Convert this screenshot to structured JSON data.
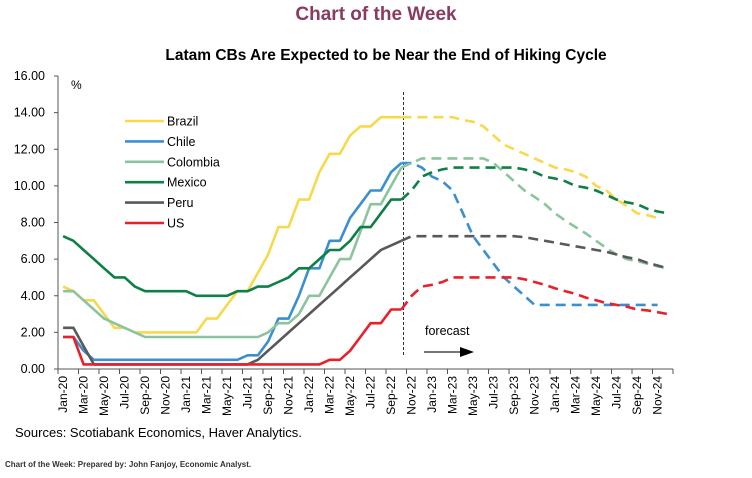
{
  "header": {
    "title": "Chart of the Week"
  },
  "footer": {
    "text": "Chart of the Week:  Prepared by: John Fanjoy, Economic Analyst."
  },
  "sources": "Sources: Scotiabank Economics, Haver Analytics.",
  "chart_data": {
    "type": "line",
    "title": "Latam CBs Are Expected to be Near the End of Hiking Cycle",
    "ylabel": "%",
    "xlabel": "",
    "ylim": [
      0,
      16
    ],
    "y_ticks": [
      "0.00",
      "2.00",
      "4.00",
      "6.00",
      "8.00",
      "10.00",
      "12.00",
      "14.00",
      "16.00"
    ],
    "x_frequency": "monthly",
    "x_tick_labels": [
      "Jan-20",
      "Mar-20",
      "May-20",
      "Jul-20",
      "Sep-20",
      "Nov-20",
      "Jan-21",
      "Mar-21",
      "May-21",
      "Jul-21",
      "Sep-21",
      "Nov-21",
      "Jan-22",
      "Mar-22",
      "May-22",
      "Jul-22",
      "Sep-22",
      "Nov-22",
      "Jan-23",
      "Mar-23",
      "May-23",
      "Jul-23",
      "Sep-23",
      "Nov-23",
      "Jan-24",
      "Mar-24",
      "May-24",
      "Jul-24",
      "Sep-24",
      "Nov-24"
    ],
    "forecast_start": "Nov-22",
    "annotation": "forecast",
    "grid": false,
    "legend_position": "top-left",
    "series": [
      {
        "name": "Brazil",
        "color": "#F7D94C",
        "values": [
          4.5,
          4.25,
          3.75,
          3.75,
          3.0,
          2.25,
          2.25,
          2.0,
          2,
          2,
          2,
          2,
          2,
          2,
          2.75,
          2.75,
          3.5,
          4.25,
          4.25,
          5.25,
          6.25,
          7.75,
          7.75,
          9.25,
          9.25,
          10.75,
          11.75,
          11.75,
          12.75,
          13.25,
          13.25,
          13.75,
          13.75,
          13.75,
          13.75,
          13.75,
          13.75,
          13.75,
          13.75,
          13.6,
          13.5,
          13.25,
          12.75,
          12.25,
          12.0,
          11.75,
          11.5,
          11.25,
          11.0,
          10.9,
          10.75,
          10.5,
          10.0,
          9.75,
          9.25,
          8.9,
          8.5,
          8.4,
          8.25,
          null
        ]
      },
      {
        "name": "Chile",
        "color": "#3B8FD0",
        "values": [
          1.75,
          1.75,
          1.0,
          0.5,
          0.5,
          0.5,
          0.5,
          0.5,
          0.5,
          0.5,
          0.5,
          0.5,
          0.5,
          0.5,
          0.5,
          0.5,
          0.5,
          0.5,
          0.75,
          0.75,
          1.5,
          2.75,
          2.75,
          4.0,
          5.5,
          5.5,
          7.0,
          7.0,
          8.25,
          9.0,
          9.75,
          9.75,
          10.75,
          11.25,
          11.25,
          11.0,
          10.5,
          10.25,
          9.75,
          8.5,
          7.25,
          6.5,
          5.75,
          5.0,
          4.5,
          4.0,
          3.5,
          3.5,
          3.5,
          3.5,
          3.5,
          3.5,
          3.5,
          3.5,
          3.5,
          3.5,
          3.5,
          3.5,
          3.5,
          null
        ]
      },
      {
        "name": "Colombia",
        "color": "#8CC49F",
        "values": [
          4.25,
          4.25,
          3.75,
          3.25,
          2.75,
          2.5,
          2.25,
          2.0,
          1.75,
          1.75,
          1.75,
          1.75,
          1.75,
          1.75,
          1.75,
          1.75,
          1.75,
          1.75,
          1.75,
          1.75,
          2.0,
          2.5,
          2.5,
          3.0,
          4.0,
          4.0,
          5.0,
          6.0,
          6.0,
          7.5,
          9.0,
          9.0,
          10.0,
          11.0,
          11.25,
          11.5,
          11.5,
          11.5,
          11.5,
          11.5,
          11.5,
          11.5,
          11.25,
          10.75,
          10.25,
          9.75,
          9.4,
          9.0,
          8.5,
          8.1,
          7.75,
          7.4,
          7.0,
          6.6,
          6.25,
          6.0,
          5.9,
          5.75,
          5.6,
          5.5
        ]
      },
      {
        "name": "Mexico",
        "color": "#0E7F47",
        "values": [
          7.25,
          7.0,
          6.5,
          6.0,
          5.5,
          5.0,
          5.0,
          4.5,
          4.25,
          4.25,
          4.25,
          4.25,
          4.25,
          4.0,
          4.0,
          4.0,
          4.0,
          4.25,
          4.25,
          4.5,
          4.5,
          4.75,
          5.0,
          5.5,
          5.5,
          6.0,
          6.5,
          6.5,
          7.0,
          7.75,
          7.75,
          8.5,
          9.25,
          9.25,
          9.75,
          10.5,
          10.75,
          10.9,
          11.0,
          11.0,
          11.0,
          11.0,
          11.0,
          11.0,
          11.0,
          10.9,
          10.75,
          10.5,
          10.4,
          10.25,
          10.0,
          9.9,
          9.75,
          9.5,
          9.25,
          9.1,
          9.0,
          8.75,
          8.6,
          8.5
        ]
      },
      {
        "name": "Peru",
        "color": "#595959",
        "values": [
          2.25,
          2.25,
          1.25,
          0.25,
          0.25,
          0.25,
          0.25,
          0.25,
          0.25,
          0.25,
          0.25,
          0.25,
          0.25,
          0.25,
          0.25,
          0.25,
          0.25,
          0.25,
          0.25,
          0.5,
          1.0,
          1.5,
          2.0,
          2.5,
          3.0,
          3.5,
          4.0,
          4.5,
          5.0,
          5.5,
          6.0,
          6.5,
          6.75,
          7.0,
          7.25,
          7.25,
          7.25,
          7.25,
          7.25,
          7.25,
          7.25,
          7.25,
          7.25,
          7.25,
          7.25,
          7.2,
          7.1,
          7.0,
          6.9,
          6.8,
          6.7,
          6.6,
          6.5,
          6.4,
          6.25,
          6.1,
          6.0,
          5.8,
          5.65,
          5.5
        ]
      },
      {
        "name": "US",
        "color": "#E8202A",
        "values": [
          1.75,
          1.75,
          0.25,
          0.25,
          0.25,
          0.25,
          0.25,
          0.25,
          0.25,
          0.25,
          0.25,
          0.25,
          0.25,
          0.25,
          0.25,
          0.25,
          0.25,
          0.25,
          0.25,
          0.25,
          0.25,
          0.25,
          0.25,
          0.25,
          0.25,
          0.25,
          0.5,
          0.5,
          1.0,
          1.75,
          2.5,
          2.5,
          3.25,
          3.25,
          4.0,
          4.5,
          4.6,
          4.75,
          5.0,
          5.0,
          5.0,
          5.0,
          5.0,
          5.0,
          5.0,
          4.9,
          4.75,
          4.6,
          4.4,
          4.25,
          4.1,
          3.9,
          3.75,
          3.6,
          3.5,
          3.4,
          3.25,
          3.2,
          3.1,
          3.0
        ]
      }
    ]
  }
}
